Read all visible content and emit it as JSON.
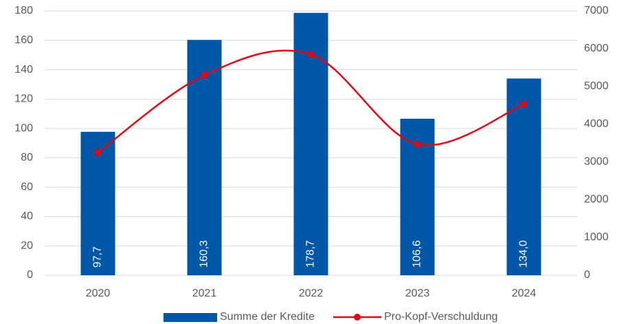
{
  "chart_data": {
    "type": "bar",
    "categories": [
      "2020",
      "2021",
      "2022",
      "2023",
      "2024"
    ],
    "series": [
      {
        "name": "Summe der Kredite",
        "type": "bar",
        "color": "#0057a8",
        "values": [
          97.7,
          160.3,
          178.7,
          106.6,
          134.0
        ],
        "value_labels": [
          "97,7",
          "160,3",
          "178,7",
          "106,6",
          "134,0"
        ]
      },
      {
        "name": "Pro-Kopf-Verschuldung",
        "type": "line",
        "axis": "y2",
        "color": "#e30613",
        "values": [
          3250,
          5300,
          5850,
          3470,
          4530
        ]
      }
    ],
    "ylim": [
      0,
      180
    ],
    "yticks": [
      0,
      20,
      40,
      60,
      80,
      100,
      120,
      140,
      160,
      180
    ],
    "y2lim": [
      0,
      7000
    ],
    "y2ticks": [
      0,
      1000,
      2000,
      3000,
      4000,
      5000,
      6000,
      7000
    ],
    "grid": true,
    "legend": "bottom"
  }
}
